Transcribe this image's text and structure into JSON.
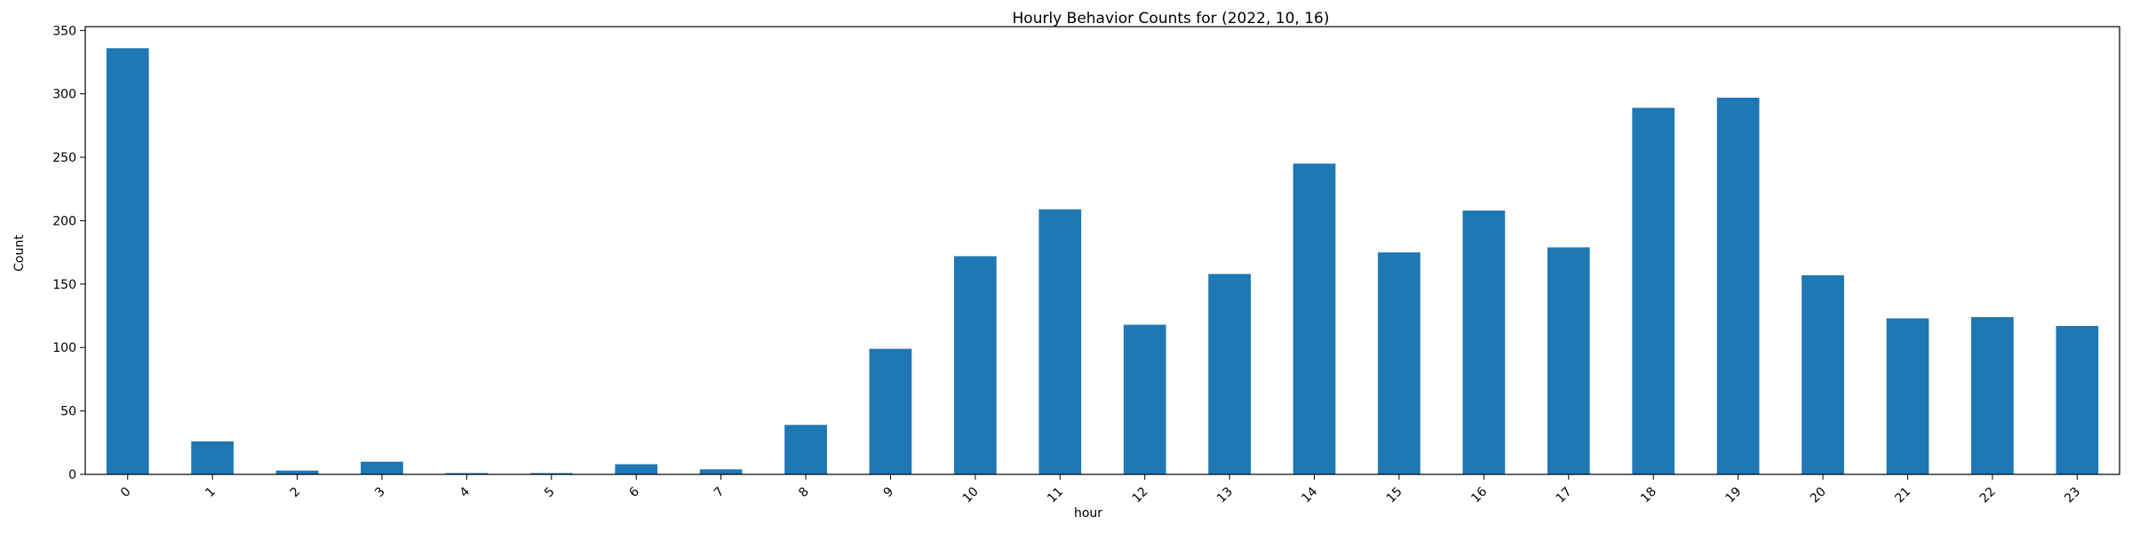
{
  "chart_data": {
    "type": "bar",
    "title": "Hourly Behavior Counts for (2022, 10, 16)",
    "xlabel": "hour",
    "ylabel": "Count",
    "categories": [
      "0",
      "1",
      "2",
      "3",
      "4",
      "5",
      "6",
      "7",
      "8",
      "9",
      "10",
      "11",
      "12",
      "13",
      "14",
      "15",
      "16",
      "17",
      "18",
      "19",
      "20",
      "21",
      "22",
      "23"
    ],
    "values": [
      336,
      26,
      3,
      10,
      1,
      1,
      8,
      4,
      39,
      99,
      172,
      209,
      118,
      158,
      245,
      175,
      208,
      179,
      289,
      297,
      157,
      123,
      124,
      117
    ],
    "ylim": [
      0,
      353
    ],
    "yticks": [
      0,
      50,
      100,
      150,
      200,
      250,
      300,
      350
    ],
    "xtick_rotation": 45,
    "grid": false,
    "bar_color": "#1f77b4"
  }
}
